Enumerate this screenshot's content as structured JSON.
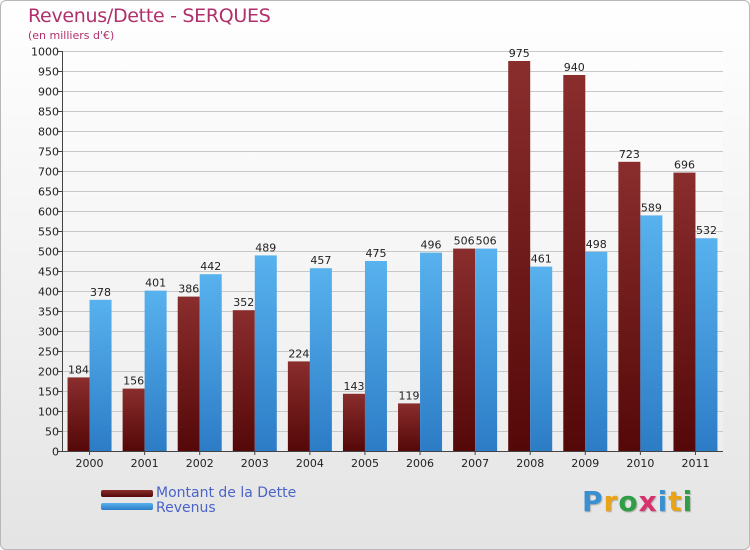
{
  "header": {
    "title": "Revenus/Dette - SERQUES",
    "subtitle": "(en milliers d'€)"
  },
  "legend": {
    "items": [
      {
        "label": "Montant de la Dette",
        "color": "#6b1a1a"
      },
      {
        "label": "Revenus",
        "color": "#4aa3e6"
      }
    ]
  },
  "logo": {
    "text": "Proxiti",
    "letters": [
      {
        "ch": "P",
        "color": "#3a8fd0"
      },
      {
        "ch": "r",
        "color": "#e8a317"
      },
      {
        "ch": "o",
        "color": "#2f9e44"
      },
      {
        "ch": "x",
        "color": "#d6336c"
      },
      {
        "ch": "i",
        "color": "#3a8fd0"
      },
      {
        "ch": "t",
        "color": "#e8a317"
      },
      {
        "ch": "i",
        "color": "#2f9e44"
      }
    ]
  },
  "chart_data": {
    "type": "bar",
    "title": "Revenus/Dette - SERQUES",
    "subtitle": "(en milliers d'€)",
    "xlabel": "",
    "ylabel": "",
    "ylim": [
      0,
      1000
    ],
    "ytick_step": 50,
    "grid": true,
    "legend_position": "bottom-left",
    "categories": [
      "2000",
      "2001",
      "2002",
      "2003",
      "2004",
      "2005",
      "2006",
      "2007",
      "2008",
      "2009",
      "2010",
      "2011"
    ],
    "series": [
      {
        "name": "Montant de la Dette",
        "color": "#7a2222",
        "values": [
          184,
          156,
          386,
          352,
          224,
          143,
          119,
          506,
          975,
          940,
          723,
          696
        ]
      },
      {
        "name": "Revenus",
        "color": "#4aa3e6",
        "values": [
          378,
          401,
          442,
          489,
          457,
          475,
          496,
          506,
          461,
          498,
          589,
          532
        ]
      }
    ]
  }
}
